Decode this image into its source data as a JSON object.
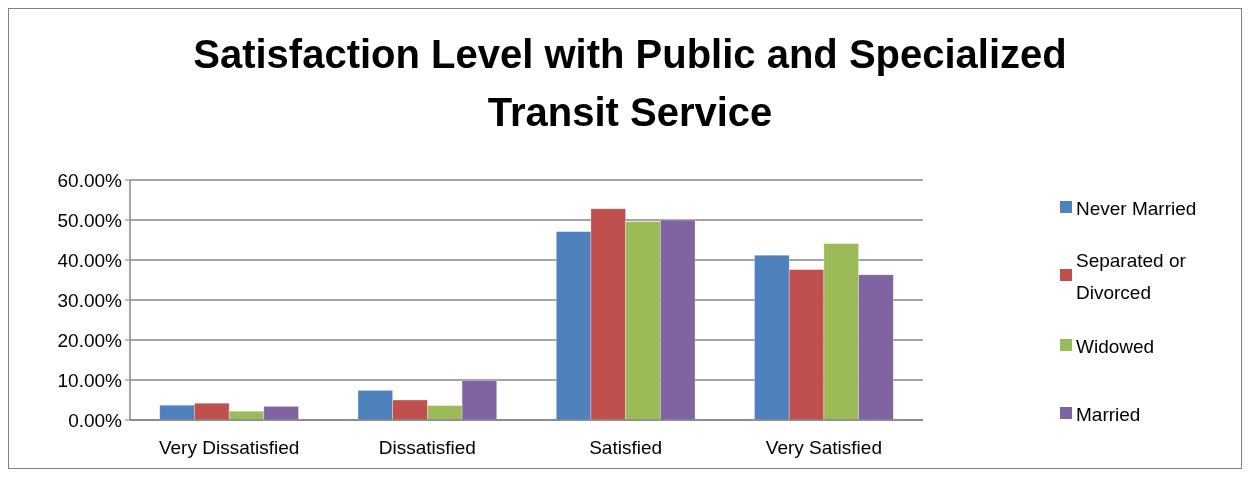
{
  "chart_data": {
    "type": "bar",
    "title": "Satisfaction Level with Public and Specialized Transit Service",
    "categories": [
      "Very Dissatisfied",
      "Dissatisfied",
      "Satisfied",
      "Very Satisfied"
    ],
    "series": [
      {
        "name": "Never Married",
        "color": "#4f81bd",
        "values": [
          3.7,
          7.4,
          47.1,
          41.2
        ]
      },
      {
        "name": "Separated or Divorced",
        "color": "#c0504d",
        "values": [
          4.2,
          5.0,
          52.8,
          37.6
        ]
      },
      {
        "name": "Widowed",
        "color": "#9bbb59",
        "values": [
          2.2,
          3.6,
          49.6,
          44.1
        ]
      },
      {
        "name": "Married",
        "color": "#8064a2",
        "values": [
          3.4,
          9.9,
          50.0,
          36.3
        ]
      }
    ],
    "ylim": [
      0,
      60
    ],
    "yticks": [
      {
        "value": 0,
        "label": "0.00%"
      },
      {
        "value": 10,
        "label": "10.00%"
      },
      {
        "value": 20,
        "label": "20.00%"
      },
      {
        "value": 30,
        "label": "30.00%"
      },
      {
        "value": 40,
        "label": "40.00%"
      },
      {
        "value": 50,
        "label": "50.00%"
      },
      {
        "value": 60,
        "label": "60.00%"
      }
    ],
    "grid": "y",
    "legend": "right"
  }
}
